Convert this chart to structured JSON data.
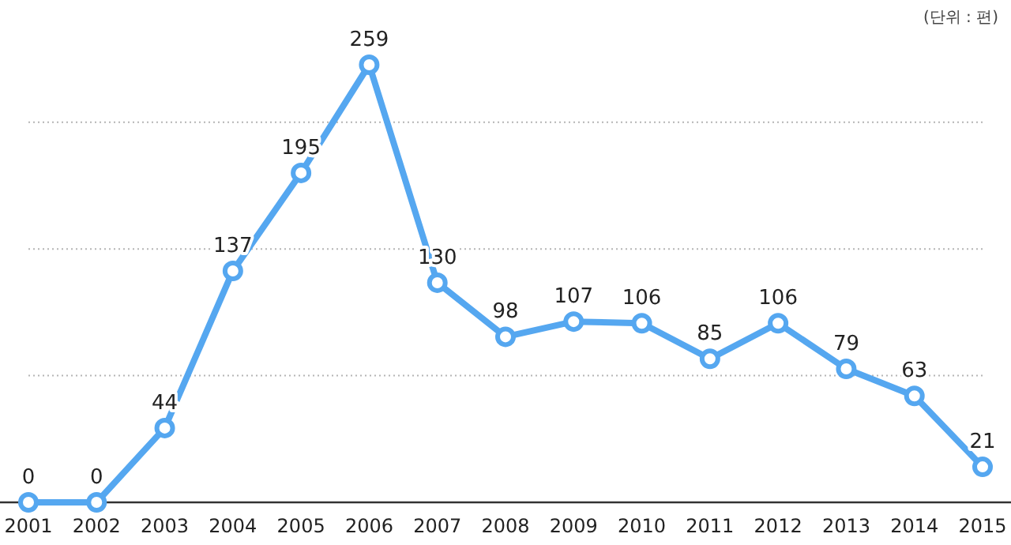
{
  "chart_data": {
    "type": "line",
    "annotations": [
      "(단위 : 편)"
    ],
    "categories": [
      "2001",
      "2002",
      "2003",
      "2004",
      "2005",
      "2006",
      "2007",
      "2008",
      "2009",
      "2010",
      "2011",
      "2012",
      "2013",
      "2014",
      "2015"
    ],
    "series": [
      {
        "color": "#55a7f0",
        "values": [
          0,
          0,
          44,
          137,
          195,
          259,
          130,
          98,
          107,
          106,
          85,
          106,
          79,
          63,
          21
        ]
      }
    ],
    "yticks": [
      {
        "value": 0,
        "label": null
      },
      {
        "value": 75,
        "label": null
      },
      {
        "value": 150,
        "label": null
      },
      {
        "value": 225,
        "label": null
      }
    ],
    "tick_labels": "x",
    "grid": "y",
    "marker": "circle",
    "line_style": "solid",
    "data_labels": true
  }
}
